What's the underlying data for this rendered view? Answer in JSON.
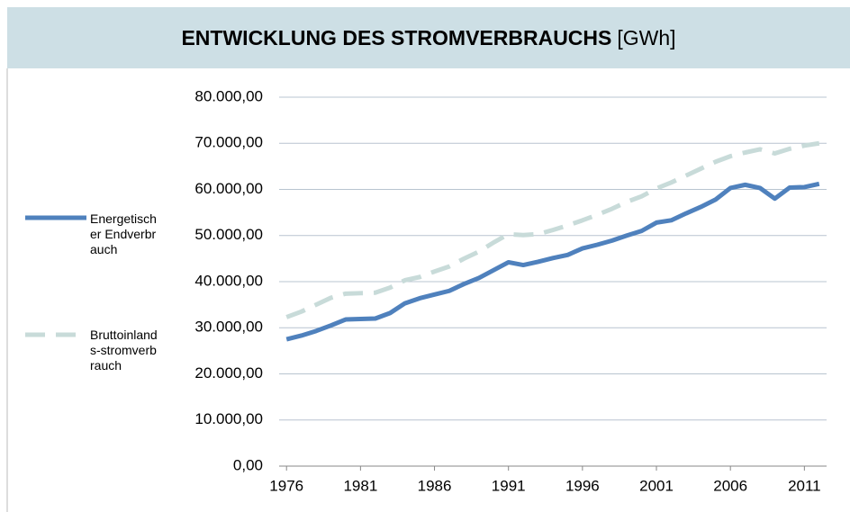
{
  "chart_data": {
    "type": "line",
    "title": "ENTWICKLUNG DES STROMVERBRAUCHS",
    "unit": "[GWh]",
    "x": [
      1976,
      1977,
      1978,
      1979,
      1980,
      1981,
      1982,
      1983,
      1984,
      1985,
      1986,
      1987,
      1988,
      1989,
      1990,
      1991,
      1992,
      1993,
      1994,
      1995,
      1996,
      1997,
      1998,
      1999,
      2000,
      2001,
      2002,
      2003,
      2004,
      2005,
      2006,
      2007,
      2008,
      2009,
      2010,
      2011,
      2012
    ],
    "series": [
      {
        "name": "Energetischer Endverbrauch",
        "color": "#4f81bd",
        "dashed": false,
        "values": [
          27500,
          28300,
          29300,
          30500,
          31800,
          31900,
          32000,
          33200,
          35300,
          36400,
          37200,
          38000,
          39500,
          40800,
          42500,
          44200,
          43600,
          44300,
          45100,
          45800,
          47200,
          48000,
          48900,
          50000,
          51000,
          52800,
          53300,
          54800,
          56200,
          57800,
          60300,
          61000,
          60300,
          58000,
          60400,
          60500,
          61200
        ]
      },
      {
        "name": "Bruttoinlands-stromverbrauch",
        "color": "#c8dbd9",
        "dashed": true,
        "values": [
          32300,
          33500,
          35000,
          36500,
          37400,
          37500,
          37600,
          38700,
          40300,
          41000,
          42200,
          43300,
          45000,
          46500,
          48500,
          50300,
          50100,
          50300,
          51200,
          52200,
          53300,
          54500,
          55800,
          57300,
          58500,
          60200,
          61500,
          63000,
          64500,
          66000,
          67200,
          68000,
          68700,
          67800,
          68800,
          69500,
          70000
        ]
      }
    ],
    "xlim": [
      1975.5,
      2012.5
    ],
    "xticks": [
      1976,
      1981,
      1986,
      1991,
      1996,
      2001,
      2006,
      2011
    ],
    "ylim": [
      0,
      80000
    ],
    "yticks": [
      {
        "value": 0,
        "label": "0,00"
      },
      {
        "value": 10000,
        "label": "10.000,00"
      },
      {
        "value": 20000,
        "label": "20.000,00"
      },
      {
        "value": 30000,
        "label": "30.000,00"
      },
      {
        "value": 40000,
        "label": "40.000,00"
      },
      {
        "value": 50000,
        "label": "50.000,00"
      },
      {
        "value": 60000,
        "label": "60.000,00"
      },
      {
        "value": 70000,
        "label": "70.000,00"
      },
      {
        "value": 80000,
        "label": "80.000,00"
      }
    ],
    "grid": true,
    "legend": "left"
  }
}
